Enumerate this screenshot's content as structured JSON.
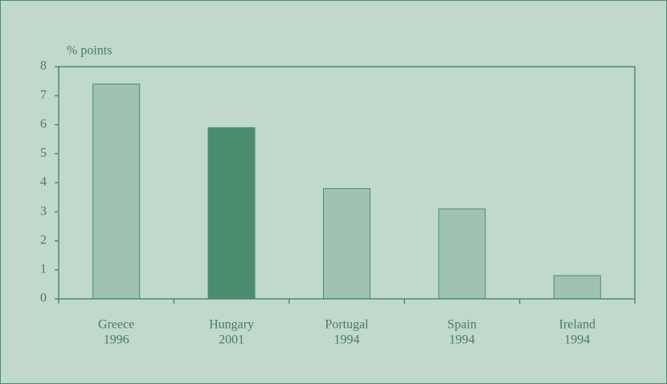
{
  "chart_data": {
    "type": "bar",
    "y_label": "% points",
    "categories": [
      [
        "Greece",
        "1996"
      ],
      [
        "Hungary",
        "2001"
      ],
      [
        "Portugal",
        "1994"
      ],
      [
        "Spain",
        "1994"
      ],
      [
        "Ireland",
        "1994"
      ]
    ],
    "values": [
      7.4,
      5.9,
      3.8,
      3.1,
      0.8
    ],
    "colors": [
      "#9fc3b0",
      "#4a8c6e",
      "#9fc3b0",
      "#9fc3b0",
      "#9fc3b0"
    ],
    "ylim": [
      0,
      8
    ],
    "yticks": [
      0,
      1,
      2,
      3,
      4,
      5,
      6,
      7,
      8
    ],
    "grid": false
  }
}
